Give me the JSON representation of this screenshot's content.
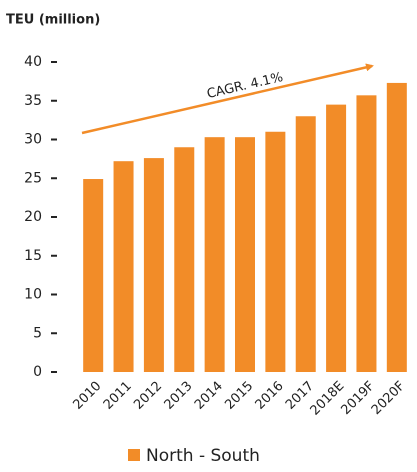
{
  "chart_data": {
    "type": "bar",
    "y_axis_label": "TEU (million)",
    "categories": [
      "2010",
      "2011",
      "2012",
      "2013",
      "2014",
      "2015",
      "2016",
      "2017",
      "2018E",
      "2019F",
      "2020F"
    ],
    "series": [
      {
        "name": "North - South",
        "color": "#f28c28",
        "values": [
          24.9,
          27.2,
          27.6,
          29.0,
          30.3,
          30.3,
          31.0,
          33.0,
          34.5,
          35.7,
          37.3
        ]
      }
    ],
    "ylim": [
      0,
      40
    ],
    "yticks": [
      0,
      5,
      10,
      15,
      20,
      25,
      30,
      35,
      40
    ],
    "annotation": "CAGR. 4.1%"
  }
}
